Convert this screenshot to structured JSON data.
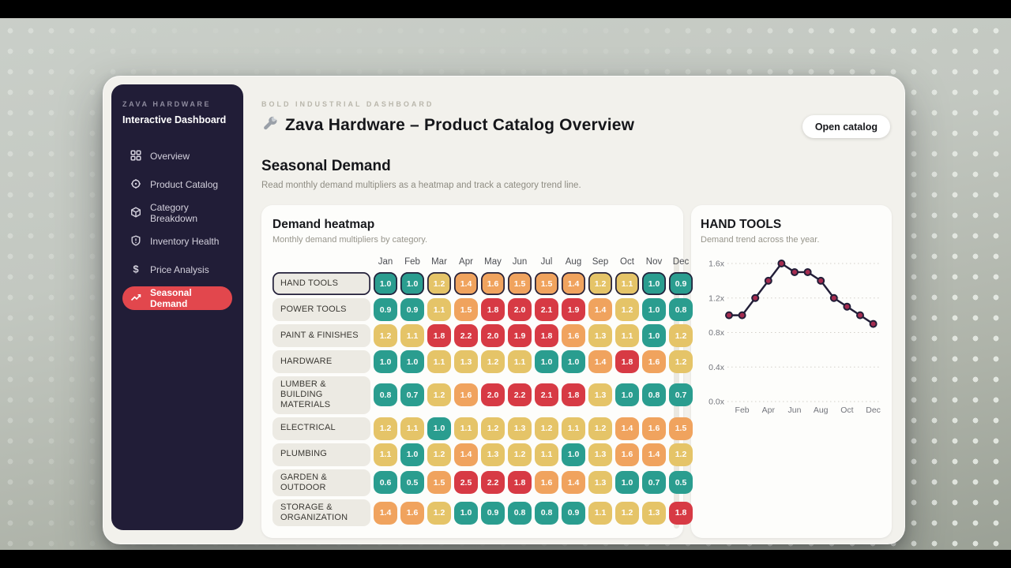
{
  "sidebar": {
    "brand": "ZAVA HARDWARE",
    "title": "Interactive Dashboard",
    "items": [
      {
        "label": "Overview",
        "icon": "grid-icon",
        "active": false
      },
      {
        "label": "Product Catalog",
        "icon": "catalog-icon",
        "active": false
      },
      {
        "label": "Category Breakdown",
        "icon": "cube-icon",
        "active": false
      },
      {
        "label": "Inventory Health",
        "icon": "shield-icon",
        "active": false
      },
      {
        "label": "Price Analysis",
        "icon": "dollar-icon",
        "active": false
      },
      {
        "label": "Seasonal Demand",
        "icon": "trend-up-icon",
        "active": true
      }
    ]
  },
  "header": {
    "kicker": "BOLD INDUSTRIAL DASHBOARD",
    "title_icon": "wrench-icon",
    "title": "Zava Hardware – Product Catalog Overview",
    "action_label": "Open catalog"
  },
  "section": {
    "title": "Seasonal Demand",
    "subtitle": "Read monthly demand multipliers as a heatmap and track a category trend line."
  },
  "heatmap_card": {
    "title": "Demand heatmap",
    "subtitle": "Monthly demand multipliers by category."
  },
  "trend_card": {
    "title": "HAND TOOLS",
    "subtitle": "Demand trend across the year."
  },
  "palette": {
    "sidebar_bg": "#211d37",
    "active_item_bg": "#e2474d",
    "window_bg": "#f2f1ec",
    "card_bg": "#fdfdfb",
    "heat_teal": "#2a9d8f",
    "heat_yellow": "#e5c468",
    "heat_orange": "#f0a35e",
    "heat_red": "#d73a44",
    "trend_line": "#221e38",
    "trend_marker": "#a52c50"
  },
  "chart_data": [
    {
      "type": "heatmap",
      "title": "Demand heatmap",
      "columns": [
        "Jan",
        "Feb",
        "Mar",
        "Apr",
        "May",
        "Jun",
        "Jul",
        "Aug",
        "Sep",
        "Oct",
        "Nov",
        "Dec"
      ],
      "color_scale": [
        {
          "max": 1.05,
          "color": "#2a9d8f"
        },
        {
          "max": 1.35,
          "color": "#e5c468"
        },
        {
          "max": 1.7,
          "color": "#f0a35e"
        },
        {
          "max": 9.9,
          "color": "#d73a44"
        }
      ],
      "rows": [
        {
          "category": "HAND TOOLS",
          "selected": true,
          "values": [
            1.0,
            1.0,
            1.2,
            1.4,
            1.6,
            1.5,
            1.5,
            1.4,
            1.2,
            1.1,
            1.0,
            0.9
          ]
        },
        {
          "category": "POWER TOOLS",
          "selected": false,
          "values": [
            0.9,
            0.9,
            1.1,
            1.5,
            1.8,
            2.0,
            2.1,
            1.9,
            1.4,
            1.2,
            1.0,
            0.8
          ]
        },
        {
          "category": "PAINT & FINISHES",
          "selected": false,
          "values": [
            1.2,
            1.1,
            1.8,
            2.2,
            2.0,
            1.9,
            1.8,
            1.6,
            1.3,
            1.1,
            1.0,
            1.2
          ]
        },
        {
          "category": "HARDWARE",
          "selected": false,
          "values": [
            1.0,
            1.0,
            1.1,
            1.3,
            1.2,
            1.1,
            1.0,
            1.0,
            1.4,
            1.8,
            1.6,
            1.2
          ]
        },
        {
          "category": "LUMBER & BUILDING MATERIALS",
          "selected": false,
          "values": [
            0.8,
            0.7,
            1.2,
            1.6,
            2.0,
            2.2,
            2.1,
            1.8,
            1.3,
            1.0,
            0.8,
            0.7
          ]
        },
        {
          "category": "ELECTRICAL",
          "selected": false,
          "values": [
            1.2,
            1.1,
            1.0,
            1.1,
            1.2,
            1.3,
            1.2,
            1.1,
            1.2,
            1.4,
            1.6,
            1.5
          ]
        },
        {
          "category": "PLUMBING",
          "selected": false,
          "values": [
            1.1,
            1.0,
            1.2,
            1.4,
            1.3,
            1.2,
            1.1,
            1.0,
            1.3,
            1.6,
            1.4,
            1.2
          ]
        },
        {
          "category": "GARDEN & OUTDOOR",
          "selected": false,
          "values": [
            0.6,
            0.5,
            1.5,
            2.5,
            2.2,
            1.8,
            1.6,
            1.4,
            1.3,
            1.0,
            0.7,
            0.5
          ]
        },
        {
          "category": "STORAGE & ORGANIZATION",
          "selected": false,
          "values": [
            1.4,
            1.6,
            1.2,
            1.0,
            0.9,
            0.8,
            0.8,
            0.9,
            1.1,
            1.2,
            1.3,
            1.8
          ]
        }
      ]
    },
    {
      "type": "line",
      "title": "HAND TOOLS",
      "x": [
        "Jan",
        "Feb",
        "Mar",
        "Apr",
        "May",
        "Jun",
        "Jul",
        "Aug",
        "Sep",
        "Oct",
        "Nov",
        "Dec"
      ],
      "values": [
        1.0,
        1.0,
        1.2,
        1.4,
        1.6,
        1.5,
        1.5,
        1.4,
        1.2,
        1.1,
        1.0,
        0.9
      ],
      "ylim": [
        0,
        1.6
      ],
      "yticks": [
        "1.6x",
        "1.2x",
        "0.8x",
        "0.4x",
        "0.0x"
      ],
      "ytick_values": [
        1.6,
        1.2,
        0.8,
        0.4,
        0.0
      ],
      "xticks": [
        "Feb",
        "Apr",
        "Jun",
        "Aug",
        "Oct",
        "Dec"
      ],
      "xtick_indices": [
        1,
        3,
        5,
        7,
        9,
        11
      ],
      "grid": "dashed"
    }
  ]
}
